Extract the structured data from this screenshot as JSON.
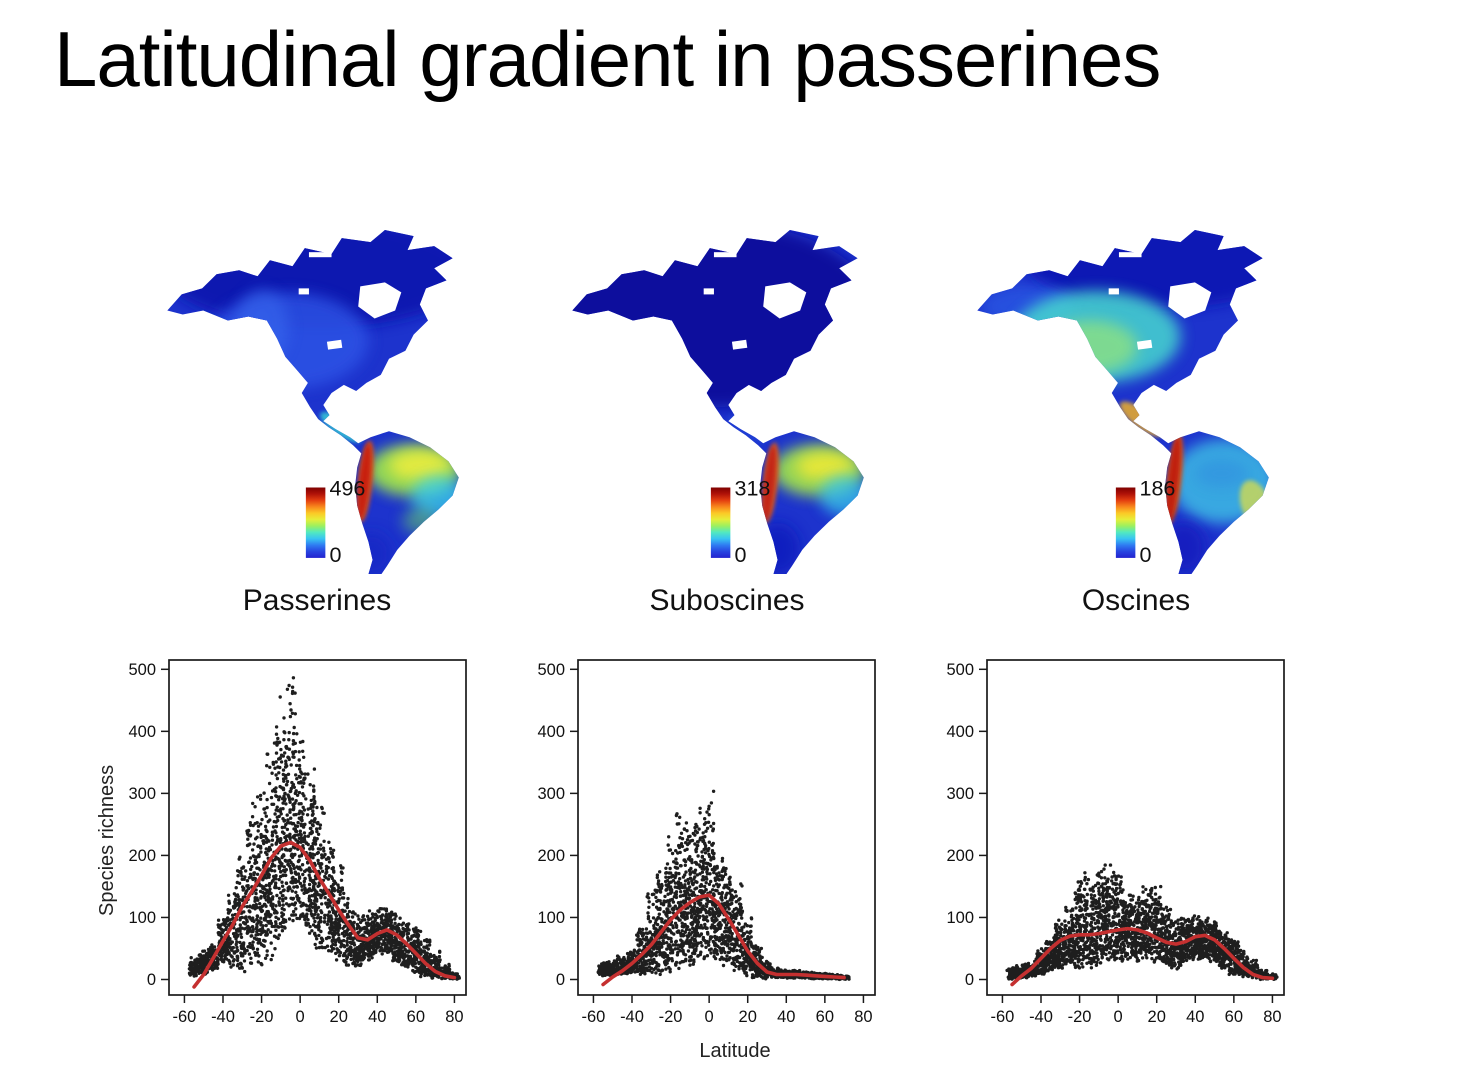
{
  "page_title": "Latitudinal gradient in passerines",
  "axis_labels": {
    "ylabel": "Species richness",
    "xlabel": "Latitude"
  },
  "map_style": {
    "base_color": "#1d33cd",
    "colorbar_stops_top_to_bottom": [
      "#7f0000",
      "#b01208",
      "#e33e10",
      "#f8871c",
      "#fbc926",
      "#e6ee39",
      "#9cf05f",
      "#52e9c0",
      "#38c4f2",
      "#2f7cf2",
      "#2744e0",
      "#2323cf"
    ]
  },
  "chart_data": [
    {
      "type": "heatmap",
      "name": "Passerines",
      "region": "Americas",
      "scale_max": 496,
      "scale_min": 0,
      "scale_max_label": "496",
      "scale_min_label": "0",
      "heat_regions": [
        [
          160,
          50,
          150,
          55,
          0,
          "#0b17ad",
          0.9,
          "lg"
        ],
        [
          130,
          118,
          78,
          48,
          0,
          "#2d55e6",
          0.8,
          "lg"
        ],
        [
          104,
          105,
          26,
          38,
          0,
          "#3a6cf0",
          0.55,
          "lg"
        ],
        [
          181,
          204,
          24,
          8,
          35,
          "#38cfd4",
          0.85,
          "sm"
        ],
        [
          252,
          247,
          46,
          26,
          0,
          "#9fe84a",
          0.9,
          "lg"
        ],
        [
          258,
          242,
          30,
          15,
          0,
          "#f0ee3c",
          0.85,
          "lg"
        ],
        [
          276,
          273,
          26,
          21,
          0,
          "#3ad2ea",
          0.75,
          "lg"
        ],
        [
          258,
          297,
          17,
          13,
          0,
          "#6fe05e",
          0.5,
          "lg"
        ],
        [
          205,
          258,
          7,
          41,
          6,
          "#e05a14",
          0.9,
          "sm"
        ],
        [
          204,
          258,
          5,
          38,
          6,
          "#c81e10",
          0.95,
          "sm"
        ],
        [
          211,
          330,
          20,
          22,
          0,
          "#1626c4",
          0.75,
          "lg"
        ]
      ]
    },
    {
      "type": "heatmap",
      "name": "Suboscines",
      "region": "Americas",
      "scale_max": 318,
      "scale_min": 0,
      "scale_max_label": "318",
      "scale_min_label": "0",
      "heat_regions": [
        [
          150,
          92,
          160,
          92,
          0,
          "#0a0f9a",
          0.95,
          "lg"
        ],
        [
          182,
          206,
          22,
          8,
          35,
          "#2446d8",
          0.6,
          "sm"
        ],
        [
          252,
          247,
          45,
          26,
          0,
          "#a2e648",
          0.9,
          "lg"
        ],
        [
          258,
          243,
          28,
          14,
          0,
          "#f2ea34",
          0.85,
          "lg"
        ],
        [
          277,
          272,
          24,
          20,
          0,
          "#38c8ea",
          0.75,
          "lg"
        ],
        [
          205,
          260,
          7,
          41,
          6,
          "#e0641a",
          0.9,
          "sm"
        ],
        [
          204,
          260,
          5,
          38,
          6,
          "#c32012",
          0.95,
          "sm"
        ],
        [
          212,
          325,
          22,
          26,
          0,
          "#101dbd",
          0.85,
          "lg"
        ]
      ]
    },
    {
      "type": "heatmap",
      "name": "Oscines",
      "region": "Americas",
      "scale_max": 186,
      "scale_min": 0,
      "scale_max_label": "186",
      "scale_min_label": "0",
      "heat_regions": [
        [
          190,
          42,
          130,
          44,
          0,
          "#0a18b2",
          0.92,
          "lg"
        ],
        [
          60,
          84,
          45,
          22,
          0,
          "#2b5ae4",
          0.75,
          "lg"
        ],
        [
          128,
          114,
          82,
          46,
          0,
          "#46d8cf",
          0.85,
          "lg"
        ],
        [
          122,
          124,
          46,
          26,
          0,
          "#9fe970",
          0.65,
          "lg"
        ],
        [
          172,
          196,
          26,
          9,
          38,
          "#f0b028",
          0.85,
          "sm"
        ],
        [
          252,
          258,
          52,
          42,
          0,
          "#41c6e6",
          0.8,
          "lg"
        ],
        [
          250,
          250,
          26,
          14,
          0,
          "#2f86e0",
          0.45,
          "lg"
        ],
        [
          283,
          281,
          14,
          25,
          -18,
          "#e8e23e",
          0.7,
          "sm"
        ],
        [
          204,
          256,
          7,
          46,
          6,
          "#e0560f",
          0.9,
          "sm"
        ],
        [
          203,
          256,
          5,
          43,
          6,
          "#bf1a0a",
          0.95,
          "sm"
        ],
        [
          213,
          324,
          22,
          26,
          0,
          "#121fbd",
          0.85,
          "lg"
        ]
      ]
    },
    {
      "type": "scatter",
      "name": "Passerines",
      "xlabel": "Latitude",
      "ylabel": "Species richness",
      "xlim": [
        -68,
        86
      ],
      "ylim": [
        -25,
        515
      ],
      "x_ticks": [
        -60,
        -40,
        -20,
        0,
        20,
        40,
        60,
        80
      ],
      "y_ticks": [
        0,
        100,
        200,
        300,
        400,
        500
      ],
      "point_color": "#000000",
      "line_color": "#c53030",
      "seed": 101,
      "smooth_line": [
        [
          -55,
          -12
        ],
        [
          -50,
          8
        ],
        [
          -45,
          35
        ],
        [
          -40,
          62
        ],
        [
          -35,
          88
        ],
        [
          -30,
          118
        ],
        [
          -25,
          142
        ],
        [
          -20,
          168
        ],
        [
          -15,
          196
        ],
        [
          -10,
          215
        ],
        [
          -5,
          221
        ],
        [
          0,
          213
        ],
        [
          5,
          192
        ],
        [
          10,
          163
        ],
        [
          15,
          138
        ],
        [
          20,
          112
        ],
        [
          25,
          88
        ],
        [
          30,
          67
        ],
        [
          35,
          64
        ],
        [
          40,
          74
        ],
        [
          45,
          80
        ],
        [
          50,
          72
        ],
        [
          55,
          58
        ],
        [
          60,
          42
        ],
        [
          65,
          26
        ],
        [
          70,
          13
        ],
        [
          75,
          6
        ],
        [
          80,
          3
        ]
      ],
      "envelope_bins": [
        [
          -55,
          5,
          40,
          60
        ],
        [
          -50,
          8,
          50,
          80
        ],
        [
          -45,
          15,
          60,
          80
        ],
        [
          -40,
          25,
          110,
          90
        ],
        [
          -35,
          15,
          160,
          90
        ],
        [
          -30,
          10,
          225,
          100
        ],
        [
          -25,
          10,
          300,
          110
        ],
        [
          -20,
          15,
          310,
          130
        ],
        [
          -15,
          30,
          390,
          140
        ],
        [
          -10,
          60,
          460,
          150
        ],
        [
          -5,
          90,
          500,
          150
        ],
        [
          0,
          90,
          450,
          140
        ],
        [
          5,
          70,
          360,
          130
        ],
        [
          10,
          45,
          305,
          120
        ],
        [
          15,
          40,
          235,
          110
        ],
        [
          20,
          30,
          205,
          100
        ],
        [
          25,
          20,
          135,
          90
        ],
        [
          30,
          20,
          115,
          90
        ],
        [
          35,
          30,
          112,
          100
        ],
        [
          40,
          40,
          118,
          110
        ],
        [
          45,
          40,
          118,
          110
        ],
        [
          50,
          28,
          108,
          100
        ],
        [
          55,
          18,
          98,
          90
        ],
        [
          60,
          8,
          88,
          90
        ],
        [
          65,
          4,
          70,
          80
        ],
        [
          70,
          1,
          50,
          70
        ],
        [
          75,
          0,
          25,
          50
        ],
        [
          80,
          0,
          12,
          40
        ]
      ]
    },
    {
      "type": "scatter",
      "name": "Suboscines",
      "xlabel": "Latitude",
      "ylabel": "Species richness",
      "xlim": [
        -68,
        86
      ],
      "ylim": [
        -25,
        515
      ],
      "x_ticks": [
        -60,
        -40,
        -20,
        0,
        20,
        40,
        60,
        80
      ],
      "y_ticks": [
        0,
        100,
        200,
        300,
        400,
        500
      ],
      "point_color": "#000000",
      "line_color": "#c53030",
      "seed": 202,
      "smooth_line": [
        [
          -55,
          -8
        ],
        [
          -50,
          4
        ],
        [
          -45,
          14
        ],
        [
          -40,
          26
        ],
        [
          -35,
          40
        ],
        [
          -30,
          56
        ],
        [
          -25,
          76
        ],
        [
          -20,
          96
        ],
        [
          -15,
          112
        ],
        [
          -10,
          124
        ],
        [
          -5,
          133
        ],
        [
          0,
          136
        ],
        [
          5,
          122
        ],
        [
          10,
          98
        ],
        [
          15,
          72
        ],
        [
          20,
          46
        ],
        [
          25,
          26
        ],
        [
          30,
          12
        ],
        [
          35,
          8
        ],
        [
          40,
          8
        ],
        [
          45,
          8
        ],
        [
          50,
          7
        ],
        [
          55,
          6
        ],
        [
          60,
          5
        ],
        [
          65,
          4
        ],
        [
          70,
          3
        ]
      ],
      "envelope_bins": [
        [
          -55,
          5,
          28,
          70
        ],
        [
          -50,
          6,
          32,
          80
        ],
        [
          -45,
          8,
          38,
          80
        ],
        [
          -40,
          10,
          48,
          90
        ],
        [
          -35,
          8,
          95,
          90
        ],
        [
          -30,
          5,
          150,
          100
        ],
        [
          -25,
          8,
          195,
          110
        ],
        [
          -20,
          8,
          240,
          120
        ],
        [
          -15,
          12,
          285,
          130
        ],
        [
          -10,
          20,
          265,
          140
        ],
        [
          -5,
          25,
          290,
          140
        ],
        [
          0,
          35,
          320,
          130
        ],
        [
          5,
          25,
          205,
          120
        ],
        [
          10,
          18,
          185,
          110
        ],
        [
          15,
          10,
          155,
          100
        ],
        [
          20,
          5,
          105,
          90
        ],
        [
          25,
          2,
          60,
          80
        ],
        [
          30,
          1,
          30,
          70
        ],
        [
          35,
          2,
          20,
          60
        ],
        [
          40,
          2,
          16,
          60
        ],
        [
          45,
          2,
          16,
          60
        ],
        [
          50,
          2,
          13,
          60
        ],
        [
          55,
          1,
          12,
          60
        ],
        [
          60,
          1,
          10,
          60
        ],
        [
          65,
          1,
          9,
          50
        ],
        [
          70,
          0,
          8,
          40
        ]
      ]
    },
    {
      "type": "scatter",
      "name": "Oscines",
      "xlabel": "Latitude",
      "ylabel": "Species richness",
      "xlim": [
        -68,
        86
      ],
      "ylim": [
        -25,
        515
      ],
      "x_ticks": [
        -60,
        -40,
        -20,
        0,
        20,
        40,
        60,
        80
      ],
      "y_ticks": [
        0,
        100,
        200,
        300,
        400,
        500
      ],
      "point_color": "#000000",
      "line_color": "#c53030",
      "seed": 303,
      "smooth_line": [
        [
          -55,
          -8
        ],
        [
          -50,
          6
        ],
        [
          -45,
          18
        ],
        [
          -40,
          34
        ],
        [
          -35,
          50
        ],
        [
          -30,
          63
        ],
        [
          -25,
          70
        ],
        [
          -20,
          72
        ],
        [
          -15,
          72
        ],
        [
          -10,
          74
        ],
        [
          -5,
          77
        ],
        [
          0,
          80
        ],
        [
          5,
          82
        ],
        [
          10,
          80
        ],
        [
          15,
          75
        ],
        [
          20,
          67
        ],
        [
          25,
          60
        ],
        [
          30,
          57
        ],
        [
          35,
          61
        ],
        [
          40,
          69
        ],
        [
          45,
          71
        ],
        [
          50,
          64
        ],
        [
          55,
          50
        ],
        [
          60,
          34
        ],
        [
          65,
          19
        ],
        [
          70,
          8
        ],
        [
          75,
          3
        ],
        [
          80,
          2
        ]
      ],
      "envelope_bins": [
        [
          -55,
          0,
          20,
          60
        ],
        [
          -50,
          2,
          26,
          70
        ],
        [
          -45,
          4,
          32,
          80
        ],
        [
          -40,
          8,
          52,
          90
        ],
        [
          -35,
          12,
          72,
          100
        ],
        [
          -30,
          18,
          98,
          110
        ],
        [
          -25,
          22,
          118,
          110
        ],
        [
          -20,
          12,
          182,
          120
        ],
        [
          -15,
          18,
          188,
          120
        ],
        [
          -10,
          22,
          178,
          120
        ],
        [
          -5,
          28,
          192,
          120
        ],
        [
          0,
          28,
          186,
          120
        ],
        [
          5,
          32,
          152,
          110
        ],
        [
          10,
          28,
          142,
          110
        ],
        [
          15,
          32,
          158,
          110
        ],
        [
          20,
          28,
          152,
          110
        ],
        [
          25,
          22,
          122,
          110
        ],
        [
          30,
          14,
          102,
          100
        ],
        [
          35,
          28,
          102,
          110
        ],
        [
          40,
          32,
          108,
          120
        ],
        [
          45,
          32,
          102,
          120
        ],
        [
          50,
          28,
          96,
          110
        ],
        [
          55,
          18,
          86,
          100
        ],
        [
          60,
          8,
          72,
          90
        ],
        [
          65,
          4,
          52,
          80
        ],
        [
          70,
          1,
          32,
          70
        ],
        [
          75,
          0,
          16,
          50
        ],
        [
          80,
          0,
          10,
          40
        ]
      ]
    }
  ]
}
